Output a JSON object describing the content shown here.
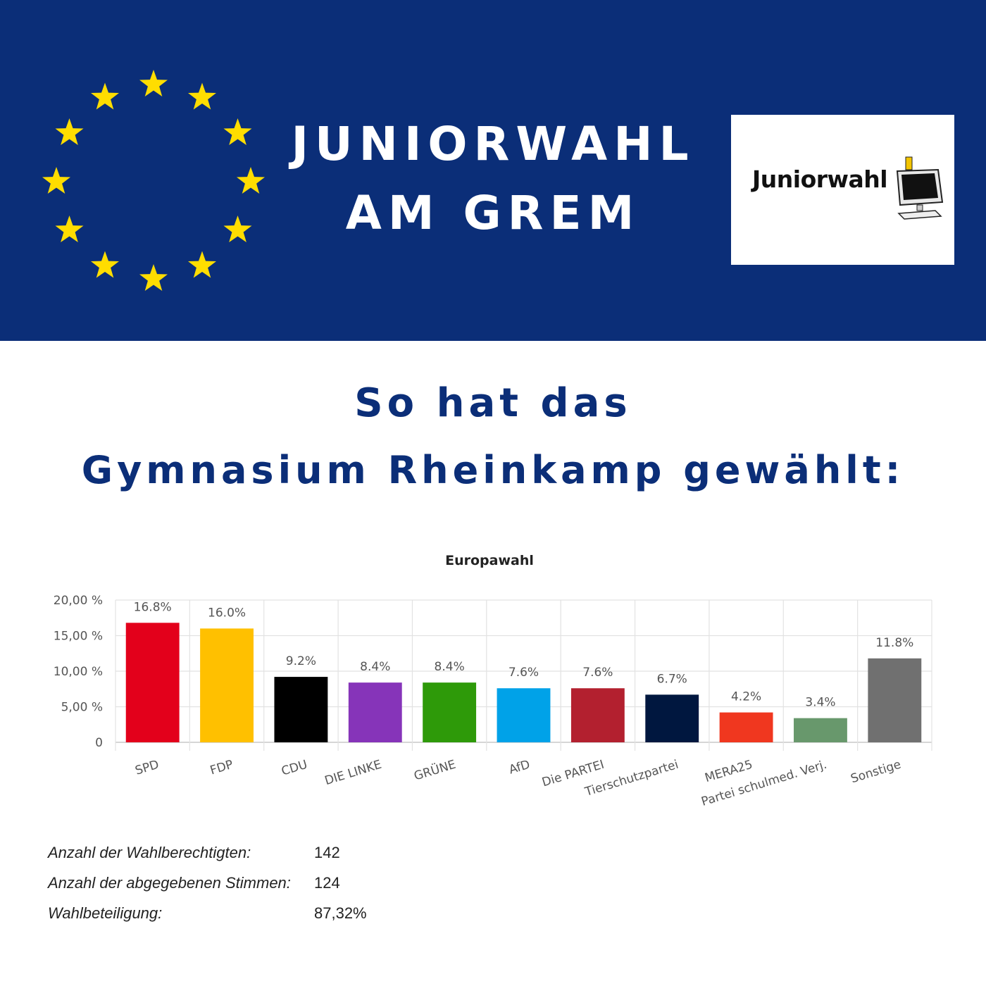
{
  "header": {
    "title_line1": "JUNIORWAHL",
    "title_line2": "AM GREM",
    "logo_text": "Juniorwahl",
    "background_color": "#0b2e78",
    "star_color": "#ffdd00",
    "star_count": 12
  },
  "subtitle": {
    "line1": "So hat das",
    "line2": "Gymnasium Rheinkamp gewählt:"
  },
  "chart_data": {
    "type": "bar",
    "title": "Europawahl",
    "categories": [
      "SPD",
      "FDP",
      "CDU",
      "DIE LINKE",
      "GRÜNE",
      "AfD",
      "Die PARTEI",
      "Tierschutzpartei",
      "MERA25",
      "Partei schulmed. Verj.",
      "Sonstige"
    ],
    "values": [
      16.8,
      16.0,
      9.2,
      8.4,
      8.4,
      7.6,
      7.6,
      6.7,
      4.2,
      3.4,
      11.8
    ],
    "value_labels": [
      "16.8%",
      "16.0%",
      "9.2%",
      "8.4%",
      "8.4%",
      "7.6%",
      "7.6%",
      "6.7%",
      "4.2%",
      "3.4%",
      "11.8%"
    ],
    "colors": [
      "#e3001b",
      "#ffc000",
      "#000000",
      "#8634b9",
      "#2e9a09",
      "#00a2e8",
      "#b3202f",
      "#00173f",
      "#f0371f",
      "#68986c",
      "#707070"
    ],
    "ylim": [
      0,
      20
    ],
    "y_ticks": [
      0,
      5,
      10,
      15,
      20
    ],
    "y_tick_labels": [
      "0",
      "5,00 %",
      "10,00 %",
      "15,00 %",
      "20,00 %"
    ],
    "xlabel": "",
    "ylabel": "",
    "grid": true
  },
  "stats": [
    {
      "label": "Anzahl der Wahlberechtigten:",
      "value": "142"
    },
    {
      "label": "Anzahl der abgegebenen Stimmen:",
      "value": "124"
    },
    {
      "label": "Wahlbeteiligung:",
      "value": "87,32%"
    }
  ]
}
